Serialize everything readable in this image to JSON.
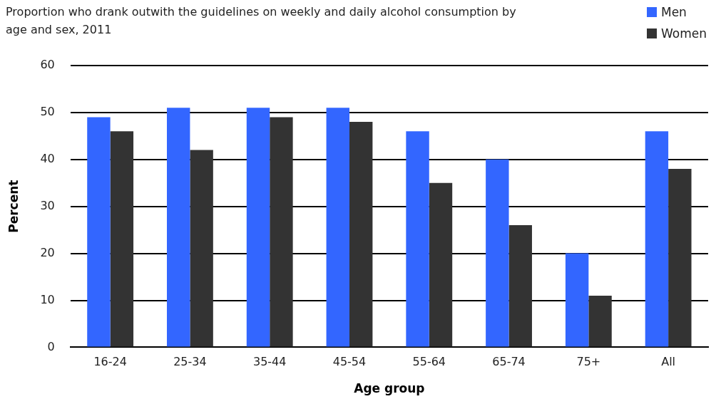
{
  "chart_data": {
    "type": "bar",
    "title": "Proportion who drank outwith the guidelines on weekly and daily alcohol consumption by age and sex, 2011",
    "xlabel": "Age group",
    "ylabel": "Percent",
    "categories": [
      "16-24",
      "25-34",
      "35-44",
      "45-54",
      "55-64",
      "65-74",
      "75+",
      "All"
    ],
    "series": [
      {
        "name": "Men",
        "color": "#3366ff",
        "values": [
          49,
          51,
          51,
          51,
          46,
          40,
          20,
          46
        ]
      },
      {
        "name": "Women",
        "color": "#333333",
        "values": [
          46,
          42,
          49,
          48,
          35,
          26,
          11,
          38
        ]
      }
    ],
    "ylim": [
      0,
      60
    ],
    "yticks": [
      0,
      10,
      20,
      30,
      40,
      50,
      60
    ],
    "grid": "y",
    "legend": "top right"
  }
}
